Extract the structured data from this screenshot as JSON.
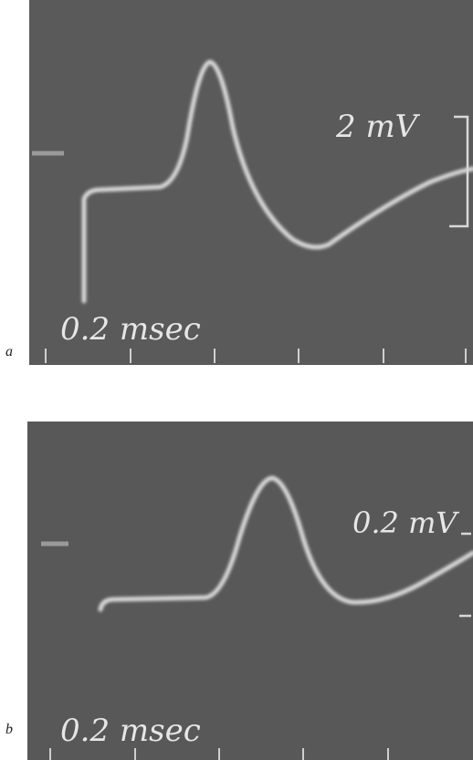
{
  "panels": [
    {
      "label": "a",
      "amplitude_label": "2 mV",
      "time_label": "0.2 msec"
    },
    {
      "label": "b",
      "amplitude_label": "0.2 mV",
      "time_label": "0.2 msec"
    }
  ]
}
